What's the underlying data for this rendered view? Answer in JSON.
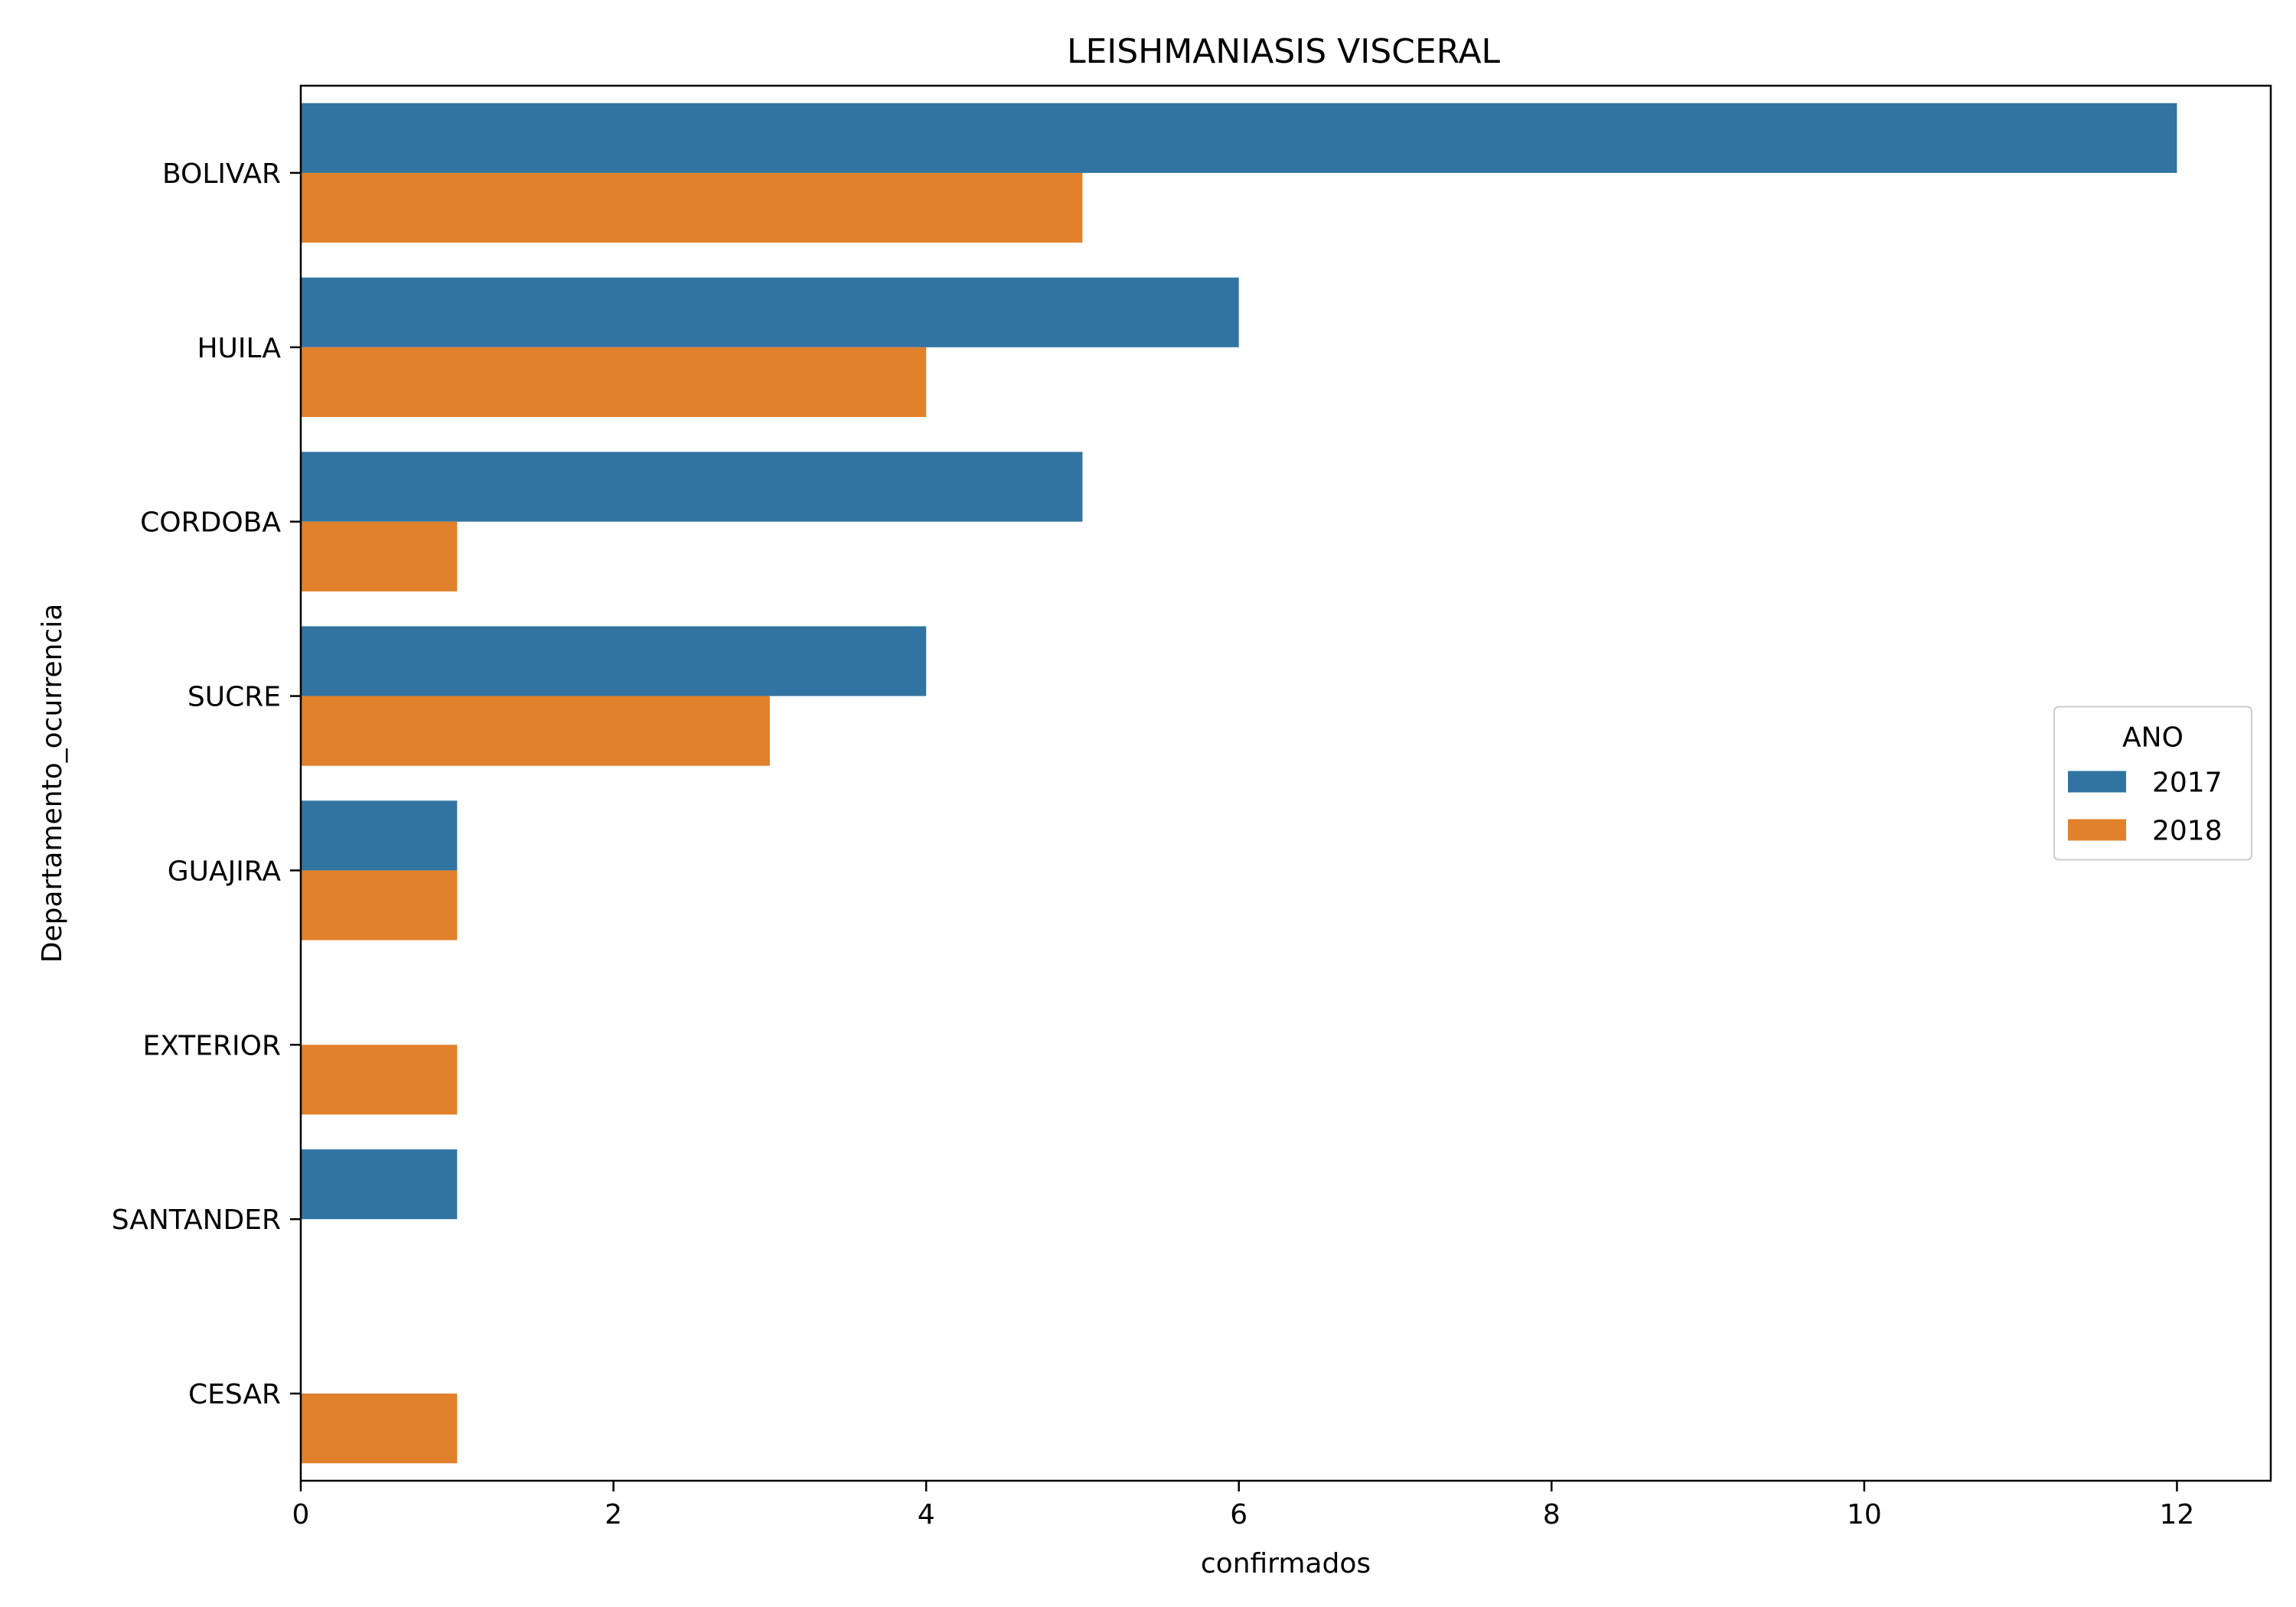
{
  "chart_data": {
    "type": "bar",
    "orientation": "horizontal",
    "title": "LEISHMANIASIS VISCERAL",
    "xlabel": "confirmados",
    "ylabel": "Departamento_ocurrencia",
    "xlim": [
      0,
      12.6
    ],
    "x_ticks": [
      "0",
      "2",
      "4",
      "6",
      "8",
      "10",
      "12"
    ],
    "grid": false,
    "categories": [
      "BOLIVAR",
      "HUILA",
      "CORDOBA",
      "SUCRE",
      "GUAJIRA",
      "EXTERIOR",
      "SANTANDER",
      "CESAR"
    ],
    "series": [
      {
        "name": "2017",
        "color": "#3274a1",
        "values": [
          12,
          6,
          5,
          4,
          1,
          null,
          1,
          null
        ]
      },
      {
        "name": "2018",
        "color": "#e1812c",
        "values": [
          5,
          4,
          1,
          3,
          1,
          1,
          null,
          1
        ]
      }
    ],
    "legend": {
      "title": "ANO",
      "placement": "center-right"
    }
  }
}
